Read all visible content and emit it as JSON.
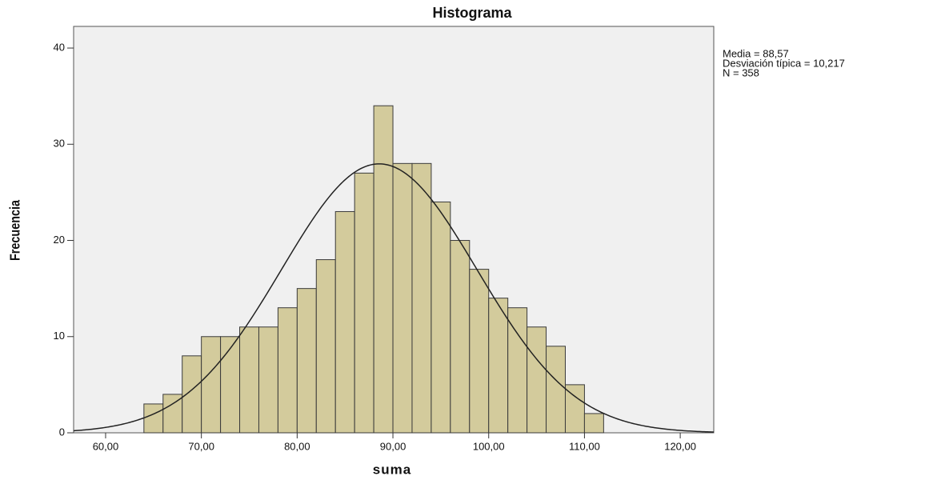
{
  "chart_data": {
    "type": "histogram",
    "title": "Histograma",
    "x_label": "suma",
    "y_label": "Frecuencia",
    "bins": [
      64,
      66,
      68,
      70,
      72,
      74,
      76,
      78,
      80,
      82,
      84,
      86,
      88,
      90,
      92,
      94,
      96,
      98,
      100,
      102,
      104,
      106,
      108,
      110,
      112
    ],
    "values": [
      3,
      4,
      8,
      10,
      10,
      11,
      11,
      13,
      15,
      18,
      23,
      27,
      34,
      28,
      28,
      24,
      20,
      17,
      14,
      13,
      11,
      9,
      5,
      2
    ],
    "color": "#d3cb9c",
    "edge_color": "#3a3a3a",
    "background": "#f0f0f0",
    "xlim": [
      56.66,
      123.5
    ],
    "ylim": [
      0,
      42.25
    ],
    "xticks": [
      {
        "value": 60,
        "label": "60,00"
      },
      {
        "value": 70,
        "label": "70,00"
      },
      {
        "value": 80,
        "label": "80,00"
      },
      {
        "value": 90,
        "label": "90,00"
      },
      {
        "value": 100,
        "label": "100,00"
      },
      {
        "value": 110,
        "label": "110,00"
      },
      {
        "value": 120,
        "label": "120,00"
      }
    ],
    "yticks": [
      0,
      10,
      20,
      30,
      40
    ],
    "normal_curve": {
      "mean": 88.57,
      "sd": 10.217,
      "n": 358
    },
    "annotations": [
      "Media = 88,57",
      "Desviación típica = 10,217",
      "N = 358"
    ]
  }
}
